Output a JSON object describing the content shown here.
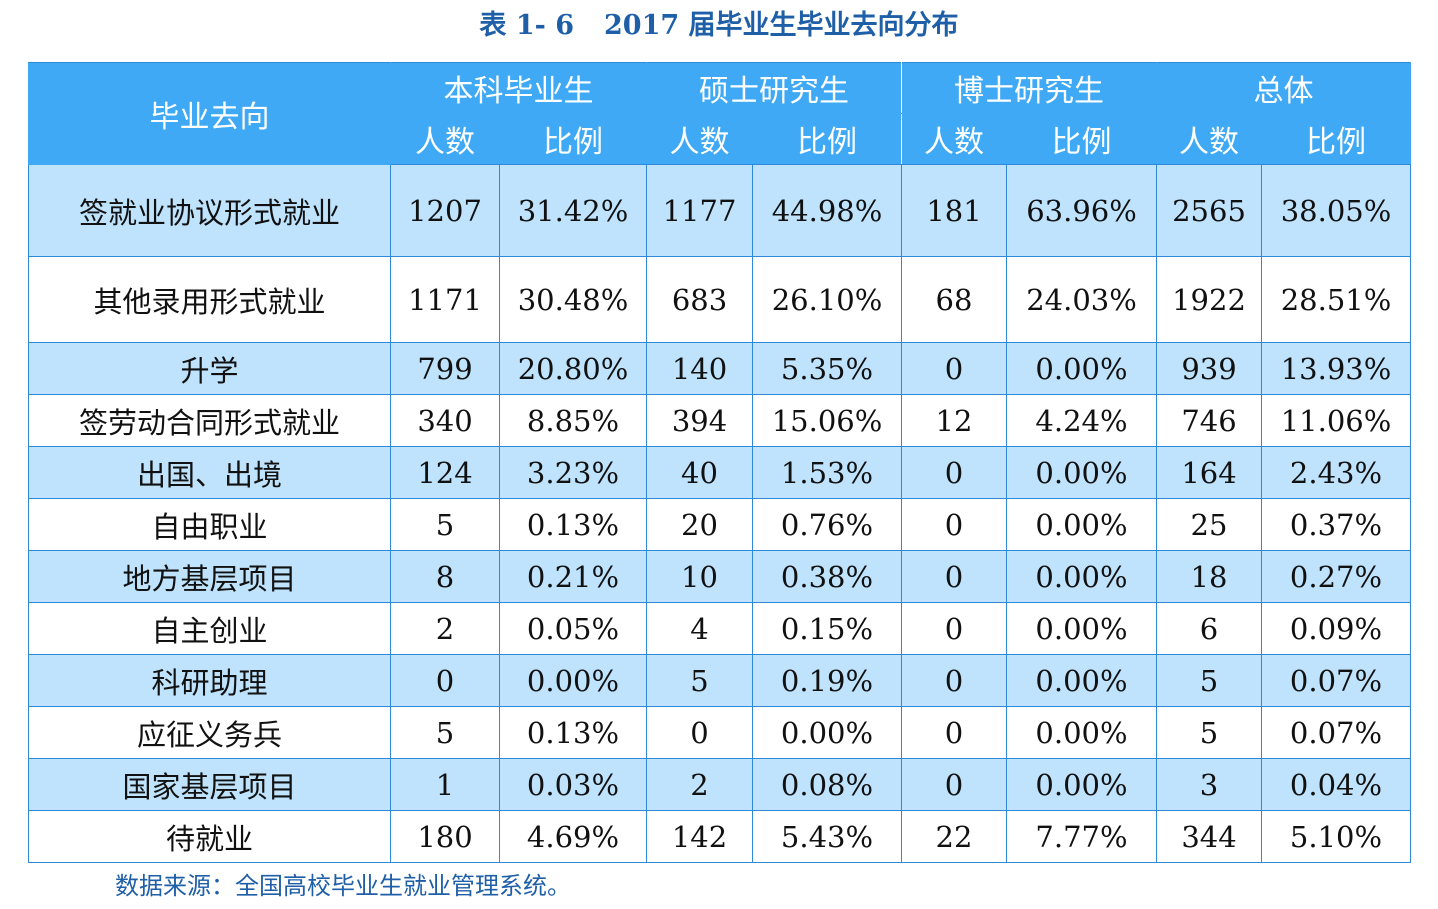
{
  "caption": {
    "number": "表 1- 6",
    "title": "2017 届毕业生毕业去向分布"
  },
  "header": {
    "row_label": "毕业去向",
    "groups": [
      "本科毕业生",
      "硕士研究生",
      "博士研究生",
      "总体"
    ],
    "count_label": "人数",
    "ratio_label": "比例"
  },
  "rows": [
    [
      "签就业协议形式就业",
      "1207",
      "31.42%",
      "1177",
      "44.98%",
      "181",
      "63.96%",
      "2565",
      "38.05%"
    ],
    [
      "其他录用形式就业",
      "1171",
      "30.48%",
      "683",
      "26.10%",
      "68",
      "24.03%",
      "1922",
      "28.51%"
    ],
    [
      "升学",
      "799",
      "20.80%",
      "140",
      "5.35%",
      "0",
      "0.00%",
      "939",
      "13.93%"
    ],
    [
      "签劳动合同形式就业",
      "340",
      "8.85%",
      "394",
      "15.06%",
      "12",
      "4.24%",
      "746",
      "11.06%"
    ],
    [
      "出国、出境",
      "124",
      "3.23%",
      "40",
      "1.53%",
      "0",
      "0.00%",
      "164",
      "2.43%"
    ],
    [
      "自由职业",
      "5",
      "0.13%",
      "20",
      "0.76%",
      "0",
      "0.00%",
      "25",
      "0.37%"
    ],
    [
      "地方基层项目",
      "8",
      "0.21%",
      "10",
      "0.38%",
      "0",
      "0.00%",
      "18",
      "0.27%"
    ],
    [
      "自主创业",
      "2",
      "0.05%",
      "4",
      "0.15%",
      "0",
      "0.00%",
      "6",
      "0.09%"
    ],
    [
      "科研助理",
      "0",
      "0.00%",
      "5",
      "0.19%",
      "0",
      "0.00%",
      "5",
      "0.07%"
    ],
    [
      "应征义务兵",
      "5",
      "0.13%",
      "0",
      "0.00%",
      "0",
      "0.00%",
      "5",
      "0.07%"
    ],
    [
      "国家基层项目",
      "1",
      "0.03%",
      "2",
      "0.08%",
      "0",
      "0.00%",
      "3",
      "0.04%"
    ],
    [
      "待就业",
      "180",
      "4.69%",
      "142",
      "5.43%",
      "22",
      "7.77%",
      "344",
      "5.10%"
    ]
  ],
  "source": "数据来源：全国高校毕业生就业管理系统。",
  "colors": {
    "caption": "#1f5fa8",
    "header_bg": "#3fa9f5",
    "stripe_bg": "#bfe3fd",
    "border": "#2e8ad8"
  }
}
